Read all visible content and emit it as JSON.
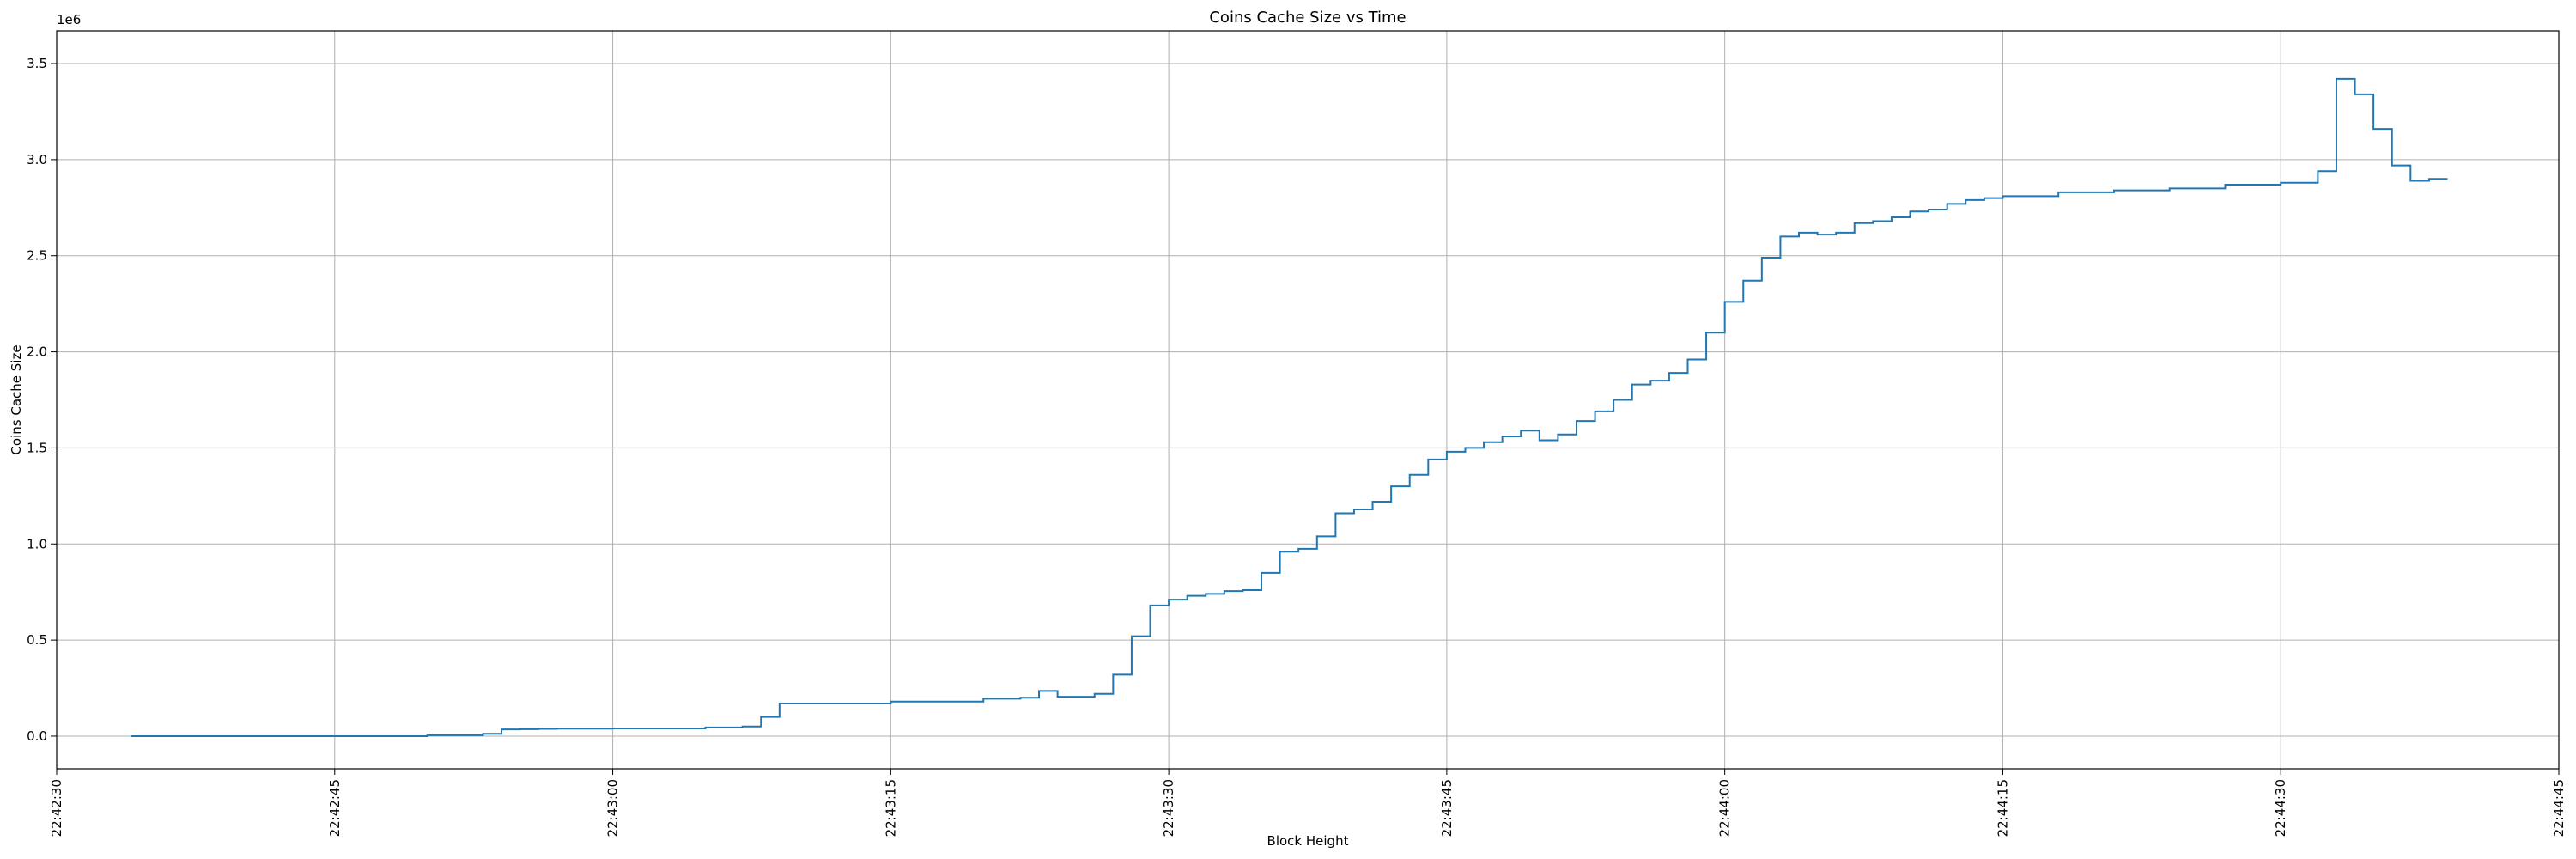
{
  "chart_data": {
    "type": "line",
    "drawstyle": "steps-post",
    "title": "Coins Cache Size vs Time",
    "xlabel": "Block Height",
    "ylabel": "Coins Cache Size",
    "y_offset_label": "1e6",
    "grid": true,
    "xlim": [
      "22:42:30",
      "22:44:45"
    ],
    "ylim": [
      -0.17,
      3.67
    ],
    "x_ticks": [
      "22:42:30",
      "22:42:45",
      "22:43:00",
      "22:43:15",
      "22:43:30",
      "22:43:45",
      "22:44:00",
      "22:44:15",
      "22:44:30",
      "22:44:45"
    ],
    "y_ticks": [
      "0.0",
      "0.5",
      "1.0",
      "1.5",
      "2.0",
      "2.5",
      "3.0",
      "3.5"
    ],
    "series": [
      {
        "color": "#1f77b4",
        "x": [
          "22:42:34",
          "22:42:44",
          "22:42:50",
          "22:42:53",
          "22:42:54",
          "22:42:55",
          "22:42:56",
          "22:42:57",
          "22:43:00",
          "22:43:05",
          "22:43:07",
          "22:43:08",
          "22:43:09",
          "22:43:15",
          "22:43:20",
          "22:43:22",
          "22:43:23",
          "22:43:24",
          "22:43:25",
          "22:43:26",
          "22:43:27",
          "22:43:28",
          "22:43:29",
          "22:43:30",
          "22:43:31",
          "22:43:32",
          "22:43:33",
          "22:43:34",
          "22:43:35",
          "22:43:36",
          "22:43:37",
          "22:43:38",
          "22:43:39",
          "22:43:40",
          "22:43:41",
          "22:43:42",
          "22:43:43",
          "22:43:44",
          "22:43:45",
          "22:43:46",
          "22:43:47",
          "22:43:48",
          "22:43:49",
          "22:43:50",
          "22:43:51",
          "22:43:52",
          "22:43:53",
          "22:43:54",
          "22:43:55",
          "22:43:56",
          "22:43:57",
          "22:43:58",
          "22:43:59",
          "22:44:00",
          "22:44:01",
          "22:44:02",
          "22:44:03",
          "22:44:04",
          "22:44:05",
          "22:44:06",
          "22:44:07",
          "22:44:08",
          "22:44:09",
          "22:44:10",
          "22:44:11",
          "22:44:12",
          "22:44:13",
          "22:44:14",
          "22:44:15",
          "22:44:18",
          "22:44:21",
          "22:44:24",
          "22:44:27",
          "22:44:30",
          "22:44:31",
          "22:44:32",
          "22:44:33",
          "22:44:34",
          "22:44:35",
          "22:44:36",
          "22:44:37",
          "22:44:38",
          "22:44:39"
        ],
        "y": [
          0.0,
          0.0,
          0.005,
          0.012,
          0.035,
          0.036,
          0.038,
          0.039,
          0.04,
          0.045,
          0.05,
          0.1,
          0.17,
          0.18,
          0.195,
          0.2,
          0.235,
          0.205,
          0.205,
          0.22,
          0.32,
          0.52,
          0.68,
          0.71,
          0.73,
          0.74,
          0.755,
          0.76,
          0.85,
          0.96,
          0.975,
          1.04,
          1.16,
          1.18,
          1.22,
          1.3,
          1.36,
          1.44,
          1.48,
          1.5,
          1.53,
          1.56,
          1.59,
          1.54,
          1.57,
          1.64,
          1.69,
          1.75,
          1.83,
          1.85,
          1.89,
          1.96,
          2.1,
          2.26,
          2.37,
          2.49,
          2.6,
          2.62,
          2.61,
          2.62,
          2.67,
          2.68,
          2.7,
          2.73,
          2.74,
          2.77,
          2.79,
          2.8,
          2.81,
          2.83,
          2.84,
          2.85,
          2.87,
          2.88,
          2.88,
          2.94,
          3.42,
          3.34,
          3.16,
          2.97,
          2.89,
          2.9,
          2.9
        ]
      }
    ]
  }
}
